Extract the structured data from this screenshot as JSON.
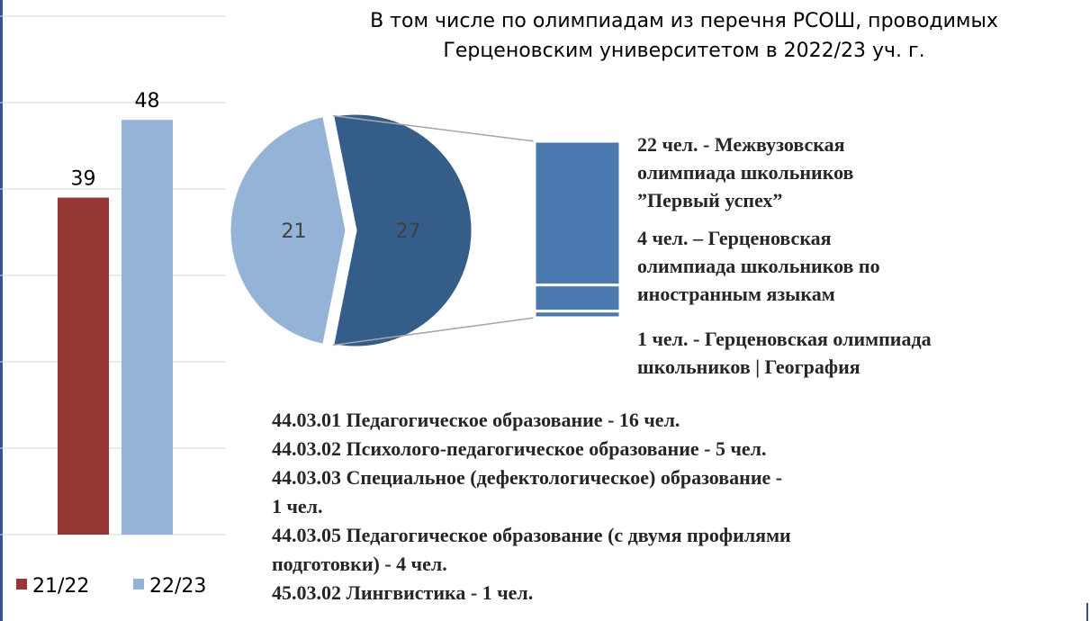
{
  "chart_data": [
    {
      "type": "bar",
      "categories": [
        null
      ],
      "series": [
        {
          "name": "21/22",
          "color": "#953735",
          "values": [
            39
          ]
        },
        {
          "name": "22/23",
          "color": "#95b3d7",
          "values": [
            48
          ]
        }
      ],
      "ylim": [
        0,
        60
      ],
      "yticks": [
        0,
        10,
        20,
        30,
        40,
        50,
        60
      ],
      "grid": true,
      "legend": "bottom"
    },
    {
      "type": "pie",
      "title": [
        "В том числе по олимпиадам из перечня РСОШ, проводимых",
        "Герценовским университетом в 2022/23 уч. г."
      ],
      "values": [
        21,
        27
      ],
      "colors": [
        "#95b3d7",
        "#355d8a"
      ],
      "breakdown": {
        "color": "#4a7ab0",
        "values": [
          22,
          4,
          1
        ],
        "labels": [
          [
            "22 чел. - Межвузовская",
            "олимпиада школьников",
            "”Первый успех”"
          ],
          [
            "4 чел. – Герценовская",
            "олимпиада школьников по",
            "иностранным языкам"
          ],
          [
            "1 чел. - Герценовская олимпиада",
            "школьников | География"
          ]
        ]
      }
    }
  ],
  "text": {
    "lines": [
      "44.03.01 Педагогическое образование - 16 чел.",
      "44.03.02 Психолого-педагогическое образование - 5 чел.",
      "44.03.03 Специальное (дефектологическое) образование -",
      "1 чел.",
      "44.03.05 Педагогическое образование (с двумя профилями",
      "подготовки) - 4 чел.",
      "45.03.02 Лингвистика - 1 чел."
    ]
  }
}
